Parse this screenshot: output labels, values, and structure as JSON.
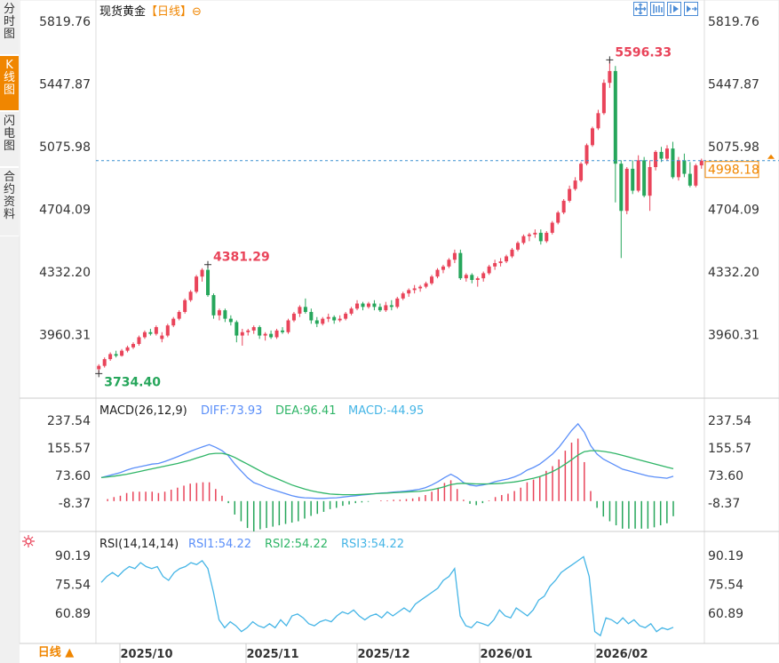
{
  "side_tabs": [
    {
      "label": "分时图",
      "active": false
    },
    {
      "label": "K线图",
      "active": true
    },
    {
      "label": "闪电图",
      "active": false
    },
    {
      "label": "合约资料",
      "active": false
    }
  ],
  "title": {
    "name": "现货黄金",
    "period": "【日线】",
    "zoom_symbol": "⊖"
  },
  "toolbar": {
    "icons": [
      "move-icon",
      "zoom-out-icon",
      "zoom-in-icon",
      "next-icon"
    ]
  },
  "bottom_bar": {
    "period_button": "日线 ▲"
  },
  "colors": {
    "up": "#e9445a",
    "down": "#26a65b",
    "diff": "#5b8ff9",
    "dea": "#2fb567",
    "macd_text": "#45b5e6",
    "accent": "#f08600"
  },
  "chart_data": [
    {
      "type": "candlestick",
      "title": "现货黄金",
      "y_ticks": [
        "5819.76",
        "5447.87",
        "5075.98",
        "4704.09",
        "4332.20",
        "3960.31"
      ],
      "ylim": [
        3700,
        5850
      ],
      "high_label": "5596.33",
      "low_label": "3734.40",
      "local_high_label": "4381.29",
      "current_price": "4998.18",
      "x_labels": [
        "2025/10",
        "2025/11",
        "2025/12",
        "2026/01",
        "2026/02"
      ],
      "candles_ohlc": [
        [
          3760,
          3790,
          3734.4,
          3780
        ],
        [
          3780,
          3830,
          3770,
          3820
        ],
        [
          3820,
          3860,
          3810,
          3850
        ],
        [
          3850,
          3870,
          3830,
          3840
        ],
        [
          3840,
          3880,
          3835,
          3870
        ],
        [
          3870,
          3900,
          3860,
          3890
        ],
        [
          3890,
          3920,
          3880,
          3910
        ],
        [
          3910,
          3960,
          3900,
          3950
        ],
        [
          3950,
          3990,
          3940,
          3980
        ],
        [
          3980,
          4000,
          3960,
          3970
        ],
        [
          3970,
          4020,
          3960,
          4010
        ],
        [
          3940,
          3980,
          3920,
          3960
        ],
        [
          3960,
          4030,
          3950,
          4020
        ],
        [
          4020,
          4070,
          4010,
          4060
        ],
        [
          4060,
          4110,
          4050,
          4100
        ],
        [
          4100,
          4180,
          4090,
          4170
        ],
        [
          4170,
          4230,
          4160,
          4220
        ],
        [
          4220,
          4320,
          4210,
          4310
        ],
        [
          4310,
          4360,
          4280,
          4350
        ],
        [
          4350,
          4381.29,
          4190,
          4200
        ],
        [
          4200,
          4210,
          4060,
          4080
        ],
        [
          4080,
          4120,
          4050,
          4110
        ],
        [
          4110,
          4120,
          4040,
          4060
        ],
        [
          4060,
          4080,
          4020,
          4040
        ],
        [
          4040,
          4050,
          3920,
          3960
        ],
        [
          3960,
          4000,
          3900,
          3980
        ],
        [
          3980,
          4000,
          3960,
          3990
        ],
        [
          3990,
          4020,
          3970,
          4010
        ],
        [
          4010,
          4020,
          3940,
          3960
        ],
        [
          3960,
          3980,
          3930,
          3970
        ],
        [
          3970,
          3990,
          3940,
          3950
        ],
        [
          3950,
          4000,
          3940,
          3990
        ],
        [
          3990,
          4010,
          3970,
          3980
        ],
        [
          3980,
          4060,
          3970,
          4050
        ],
        [
          4050,
          4100,
          4040,
          4090
        ],
        [
          4090,
          4140,
          4070,
          4130
        ],
        [
          4130,
          4180,
          4090,
          4100
        ],
        [
          4100,
          4120,
          4030,
          4050
        ],
        [
          4050,
          4070,
          4010,
          4030
        ],
        [
          4030,
          4070,
          4020,
          4060
        ],
        [
          4060,
          4090,
          4040,
          4070
        ],
        [
          4070,
          4080,
          4030,
          4050
        ],
        [
          4050,
          4080,
          4040,
          4060
        ],
        [
          4060,
          4100,
          4050,
          4090
        ],
        [
          4090,
          4130,
          4080,
          4120
        ],
        [
          4120,
          4170,
          4110,
          4150
        ],
        [
          4150,
          4160,
          4110,
          4130
        ],
        [
          4130,
          4160,
          4120,
          4150
        ],
        [
          4150,
          4170,
          4110,
          4130
        ],
        [
          4130,
          4150,
          4100,
          4110
        ],
        [
          4110,
          4160,
          4100,
          4140
        ],
        [
          4140,
          4170,
          4110,
          4130
        ],
        [
          4130,
          4190,
          4120,
          4180
        ],
        [
          4180,
          4220,
          4170,
          4210
        ],
        [
          4210,
          4240,
          4190,
          4230
        ],
        [
          4230,
          4260,
          4210,
          4240
        ],
        [
          4240,
          4260,
          4220,
          4250
        ],
        [
          4250,
          4280,
          4240,
          4270
        ],
        [
          4270,
          4320,
          4260,
          4310
        ],
        [
          4310,
          4360,
          4300,
          4350
        ],
        [
          4350,
          4380,
          4330,
          4370
        ],
        [
          4370,
          4420,
          4360,
          4410
        ],
        [
          4410,
          4470,
          4390,
          4450
        ],
        [
          4450,
          4470,
          4290,
          4300
        ],
        [
          4300,
          4330,
          4280,
          4320
        ],
        [
          4320,
          4330,
          4270,
          4290
        ],
        [
          4290,
          4310,
          4250,
          4300
        ],
        [
          4300,
          4340,
          4280,
          4330
        ],
        [
          4330,
          4380,
          4320,
          4370
        ],
        [
          4370,
          4410,
          4350,
          4390
        ],
        [
          4390,
          4420,
          4370,
          4400
        ],
        [
          4400,
          4440,
          4390,
          4430
        ],
        [
          4430,
          4480,
          4420,
          4470
        ],
        [
          4470,
          4520,
          4460,
          4510
        ],
        [
          4510,
          4560,
          4500,
          4550
        ],
        [
          4550,
          4570,
          4520,
          4560
        ],
        [
          4560,
          4590,
          4540,
          4570
        ],
        [
          4570,
          4590,
          4500,
          4520
        ],
        [
          4520,
          4580,
          4510,
          4570
        ],
        [
          4570,
          4640,
          4560,
          4630
        ],
        [
          4630,
          4700,
          4620,
          4690
        ],
        [
          4690,
          4770,
          4680,
          4760
        ],
        [
          4760,
          4850,
          4750,
          4830
        ],
        [
          4830,
          4900,
          4820,
          4880
        ],
        [
          4880,
          4990,
          4870,
          4980
        ],
        [
          4980,
          5100,
          4970,
          5090
        ],
        [
          5090,
          5200,
          5080,
          5190
        ],
        [
          5190,
          5300,
          5180,
          5280
        ],
        [
          5280,
          5480,
          5270,
          5460
        ],
        [
          5460,
          5596.33,
          5430,
          5530
        ],
        [
          5530,
          5560,
          4750,
          4980
        ],
        [
          4980,
          5000,
          4420,
          4700
        ],
        [
          4700,
          4960,
          4680,
          4950
        ],
        [
          4950,
          5000,
          4800,
          4820
        ],
        [
          4820,
          5030,
          4810,
          5000
        ],
        [
          5000,
          5020,
          4780,
          4790
        ],
        [
          4790,
          5000,
          4700,
          4960
        ],
        [
          4960,
          5060,
          4940,
          5050
        ],
        [
          5050,
          5080,
          4990,
          5010
        ],
        [
          5010,
          5090,
          5000,
          5070
        ],
        [
          5070,
          5110,
          4890,
          4900
        ],
        [
          4900,
          5020,
          4880,
          5000
        ],
        [
          5000,
          5040,
          4900,
          4920
        ],
        [
          4920,
          4990,
          4840,
          4850
        ],
        [
          4850,
          4980,
          4840,
          4970
        ],
        [
          4970,
          5010,
          4950,
          4998.18
        ]
      ]
    },
    {
      "type": "macd",
      "title": "MACD(26,12,9)",
      "diff_label": "DIFF:73.93",
      "dea_label": "DEA:96.41",
      "macd_label": "MACD:-44.95",
      "y_ticks": [
        "237.54",
        "155.57",
        "73.60",
        "-8.37"
      ],
      "ylim": [
        -80,
        260
      ],
      "diff": [
        70,
        75,
        80,
        85,
        92,
        98,
        102,
        106,
        110,
        112,
        118,
        125,
        132,
        140,
        148,
        155,
        162,
        168,
        160,
        150,
        135,
        110,
        90,
        70,
        55,
        48,
        40,
        34,
        28,
        22,
        16,
        12,
        10,
        9,
        8,
        8,
        9,
        10,
        12,
        14,
        16,
        18,
        20,
        22,
        24,
        25,
        27,
        28,
        30,
        32,
        35,
        40,
        48,
        58,
        70,
        80,
        70,
        55,
        48,
        45,
        48,
        52,
        58,
        62,
        66,
        72,
        80,
        92,
        100,
        110,
        125,
        140,
        160,
        185,
        210,
        230,
        205,
        165,
        140,
        125,
        115,
        105,
        95,
        90,
        85,
        80,
        75,
        72,
        70,
        68,
        73.93
      ],
      "dea": [
        70,
        72,
        74,
        77,
        80,
        84,
        88,
        92,
        96,
        100,
        104,
        108,
        112,
        117,
        122,
        128,
        134,
        140,
        142,
        142,
        138,
        130,
        120,
        110,
        100,
        90,
        80,
        72,
        64,
        56,
        48,
        42,
        36,
        31,
        27,
        24,
        21,
        20,
        19,
        19,
        19,
        20,
        21,
        22,
        23,
        24,
        25,
        26,
        27,
        28,
        29,
        31,
        34,
        38,
        43,
        49,
        52,
        53,
        52,
        51,
        51,
        51,
        52,
        53,
        55,
        57,
        60,
        64,
        68,
        73,
        80,
        88,
        98,
        110,
        123,
        137,
        147,
        150,
        150,
        148,
        145,
        141,
        136,
        131,
        126,
        121,
        116,
        111,
        106,
        101,
        96.41
      ],
      "macd": [
        0,
        6,
        12,
        16,
        24,
        28,
        28,
        28,
        28,
        24,
        28,
        34,
        40,
        46,
        52,
        54,
        56,
        56,
        36,
        16,
        -6,
        -40,
        -60,
        -80,
        -90,
        -84,
        -80,
        -76,
        -72,
        -68,
        -64,
        -60,
        -52,
        -44,
        -38,
        -32,
        -24,
        -20,
        -14,
        -10,
        -6,
        -4,
        -2,
        0,
        2,
        2,
        4,
        4,
        6,
        8,
        12,
        18,
        28,
        40,
        54,
        62,
        36,
        4,
        -8,
        -12,
        -6,
        2,
        12,
        18,
        22,
        30,
        40,
        56,
        64,
        74,
        90,
        104,
        124,
        150,
        174,
        186,
        116,
        30,
        -20,
        -46,
        -60,
        -72,
        -82,
        -82,
        -82,
        -82,
        -82,
        -78,
        -72,
        -66,
        -44.95
      ]
    },
    {
      "type": "rsi",
      "title": "RSI(14,14,14)",
      "rsi1_label": "RSI1:54.22",
      "rsi2_label": "RSI2:54.22",
      "rsi3_label": "RSI3:54.22",
      "y_ticks": [
        "90.19",
        "75.54",
        "60.89"
      ],
      "ylim": [
        48,
        95
      ],
      "rsi": [
        77,
        80,
        82,
        80,
        83,
        85,
        84,
        87,
        85,
        84,
        85,
        80,
        78,
        82,
        84,
        85,
        87,
        86,
        88,
        84,
        72,
        58,
        54,
        57,
        55,
        52,
        54,
        57,
        55,
        54,
        56,
        54,
        58,
        55,
        60,
        61,
        59,
        56,
        55,
        57,
        58,
        57,
        60,
        62,
        61,
        63,
        60,
        58,
        60,
        61,
        59,
        62,
        60,
        62,
        64,
        62,
        66,
        68,
        70,
        72,
        74,
        78,
        80,
        84,
        60,
        55,
        54,
        57,
        56,
        55,
        58,
        63,
        60,
        59,
        64,
        62,
        60,
        63,
        68,
        70,
        75,
        78,
        82,
        84,
        86,
        88,
        90,
        80,
        52,
        50,
        59,
        58,
        56,
        59,
        56,
        58,
        55,
        54,
        56,
        52,
        54,
        53,
        54.22
      ]
    }
  ]
}
